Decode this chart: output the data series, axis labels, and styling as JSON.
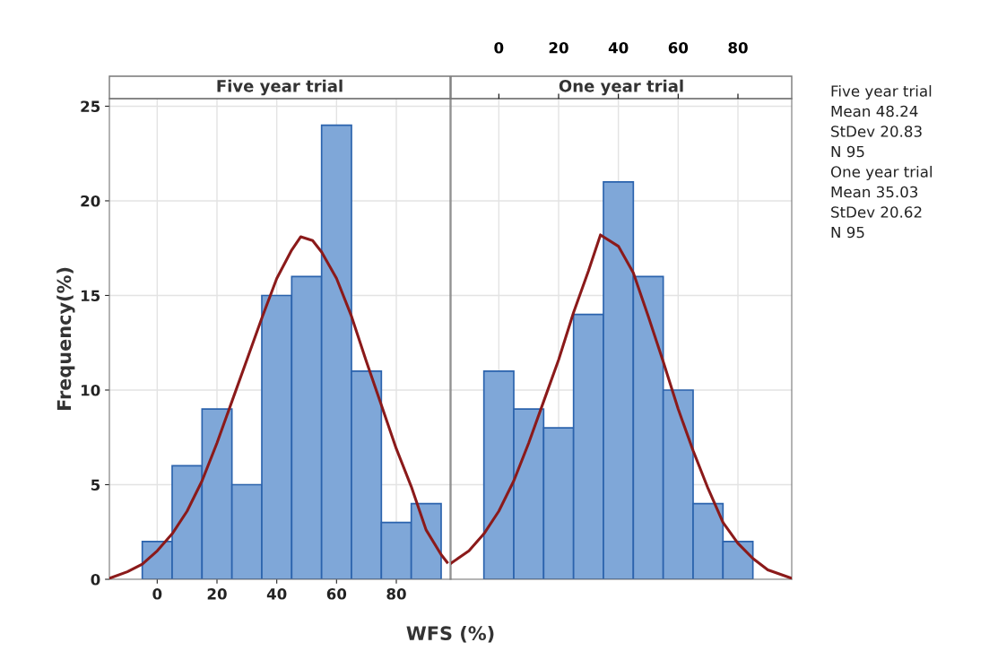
{
  "chart_data": [
    {
      "type": "histogram",
      "title": "Five year trial",
      "xlabel": "WFS (%)",
      "ylabel": "Frequency(%)",
      "bins": [
        -5,
        5,
        15,
        25,
        35,
        45,
        55,
        65,
        75,
        85,
        95
      ],
      "series": [
        {
          "color": "#7fa7d8",
          "values": [
            2,
            6,
            9,
            5,
            15,
            16,
            24,
            11,
            3,
            4
          ]
        },
        {
          "type": "line",
          "color": "#8b1a1a",
          "x": [
            -16,
            -10,
            -5,
            0,
            5,
            10,
            15,
            20,
            25,
            30,
            35,
            40,
            45,
            48,
            52,
            55,
            60,
            65,
            70,
            75,
            80,
            85,
            90,
            95,
            97
          ],
          "values": [
            0.05,
            0.4,
            0.8,
            1.5,
            2.4,
            3.6,
            5.2,
            7.2,
            9.4,
            11.6,
            13.8,
            15.9,
            17.4,
            18.1,
            17.9,
            17.3,
            15.9,
            13.9,
            11.5,
            9.2,
            6.9,
            4.9,
            2.6,
            1.3,
            0.9
          ]
        }
      ],
      "xlim": [
        -16,
        98
      ],
      "xticks": [
        0,
        20,
        40,
        60,
        80
      ],
      "ylim": [
        0,
        25.4
      ],
      "yticks": [
        0,
        5,
        10,
        15,
        20,
        25
      ],
      "grid": true,
      "tick_labels": "xy"
    },
    {
      "type": "histogram",
      "title": "One year trial",
      "bins": [
        -5,
        5,
        15,
        25,
        35,
        45,
        55,
        65,
        75,
        85
      ],
      "series": [
        {
          "color": "#7fa7d8",
          "values": [
            11,
            9,
            8,
            14,
            21,
            16,
            10,
            4,
            2
          ]
        },
        {
          "type": "line",
          "color": "#8b1a1a",
          "x": [
            -16,
            -10,
            -5,
            0,
            5,
            10,
            15,
            20,
            25,
            30,
            34,
            40,
            45,
            50,
            55,
            60,
            65,
            70,
            75,
            80,
            85,
            90,
            98
          ],
          "values": [
            0.85,
            1.5,
            2.4,
            3.6,
            5.2,
            7.2,
            9.4,
            11.6,
            14.1,
            16.3,
            18.2,
            17.6,
            16.2,
            13.9,
            11.5,
            9.0,
            6.8,
            4.8,
            3.0,
            1.9,
            1.1,
            0.5,
            0.05
          ]
        }
      ],
      "xlim": [
        -16,
        98
      ],
      "x2lim": [
        -16,
        98
      ],
      "x2ticks": [
        0,
        20,
        40,
        60,
        80
      ],
      "ylim": [
        0,
        25.4
      ],
      "yticks": [
        0,
        5,
        10,
        15,
        20,
        25
      ],
      "grid": true,
      "tick_labels": false,
      "annotations": [
        "Five year trial",
        "Mean 48.24",
        "StDev 20.83",
        "N 95",
        "One year trial",
        "Mean 35.03",
        "StDev 20.62",
        "N 95"
      ]
    }
  ]
}
